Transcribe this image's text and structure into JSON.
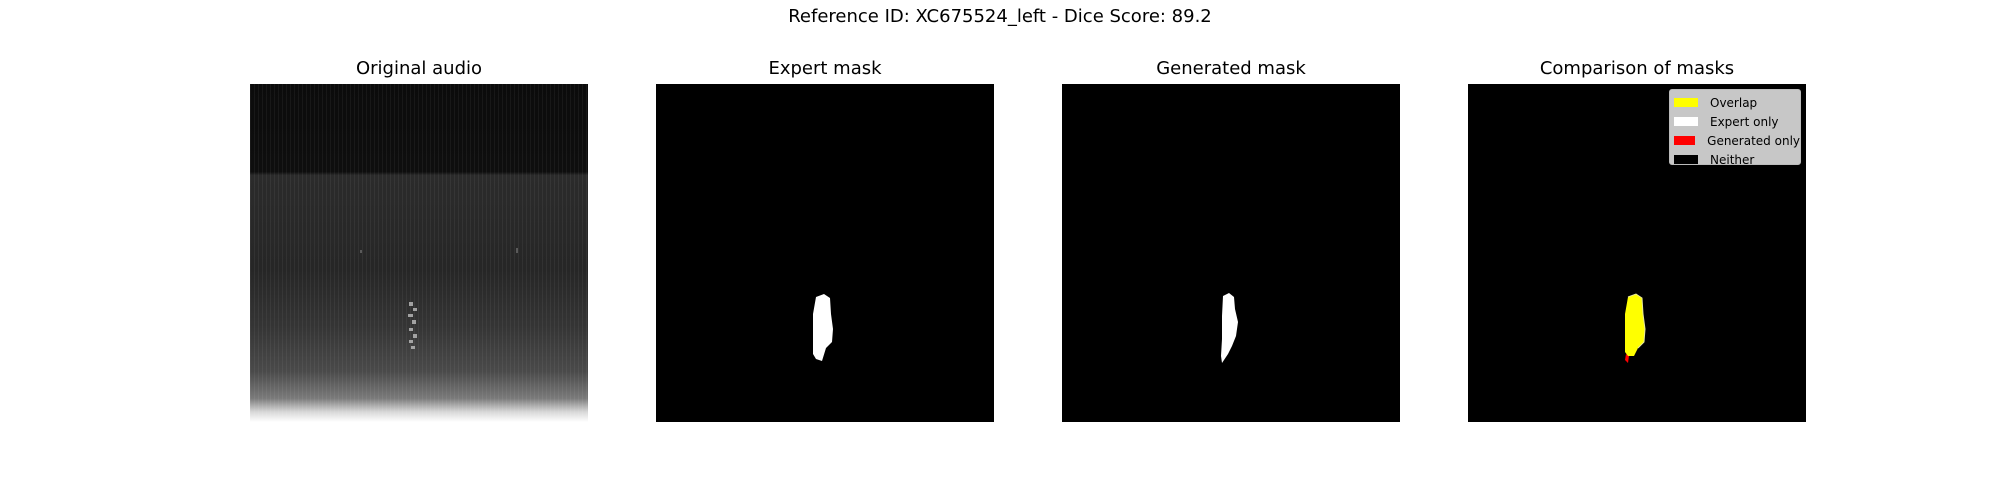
{
  "figure": {
    "suptitle": "Reference ID: XC675524_left - Dice Score: 89.2"
  },
  "panels": [
    {
      "title": "Original audio"
    },
    {
      "title": "Expert mask"
    },
    {
      "title": "Generated mask"
    },
    {
      "title": "Comparison of masks"
    }
  ],
  "legend": {
    "items": [
      {
        "label": "Overlap",
        "color": "#ffff00"
      },
      {
        "label": "Expert only",
        "color": "#ffffff"
      },
      {
        "label": "Generated only",
        "color": "#ff0000"
      },
      {
        "label": "Neither",
        "color": "#000000"
      }
    ]
  },
  "colors": {
    "overlap": "#ffff00",
    "expert_only": "#ffffff",
    "generated_only": "#ff0000",
    "neither": "#000000"
  }
}
